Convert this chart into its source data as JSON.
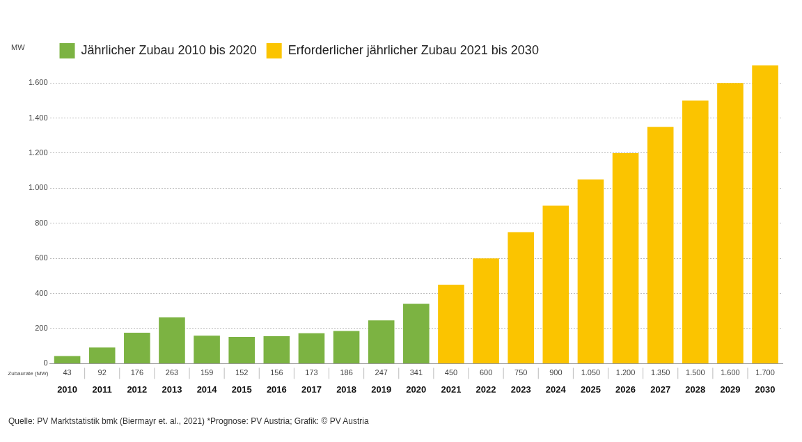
{
  "chart_data": {
    "type": "bar",
    "ylabel": "MW",
    "categories": [
      "2010",
      "2011",
      "2012",
      "2013",
      "2014",
      "2015",
      "2016",
      "2017",
      "2018",
      "2019",
      "2020",
      "2021",
      "2022",
      "2023",
      "2024",
      "2025",
      "2026",
      "2027",
      "2028",
      "2029",
      "2030"
    ],
    "series": [
      {
        "name": "Jährlicher Zubau 2010 bis 2020",
        "color": "#7cb342",
        "values": [
          43,
          92,
          176,
          263,
          159,
          152,
          156,
          173,
          186,
          247,
          341,
          null,
          null,
          null,
          null,
          null,
          null,
          null,
          null,
          null,
          null
        ],
        "value_labels": [
          "43",
          "92",
          "176",
          "263",
          "159",
          "152",
          "156",
          "173",
          "186",
          "247",
          "341",
          null,
          null,
          null,
          null,
          null,
          null,
          null,
          null,
          null,
          null
        ]
      },
      {
        "name": "Erforderlicher jährlicher Zubau 2021 bis 2030",
        "color": "#fbc400",
        "values": [
          null,
          null,
          null,
          null,
          null,
          null,
          null,
          null,
          null,
          null,
          null,
          450,
          600,
          750,
          900,
          1050,
          1200,
          1350,
          1500,
          1600,
          1700
        ],
        "value_labels": [
          null,
          null,
          null,
          null,
          null,
          null,
          null,
          null,
          null,
          null,
          null,
          "450",
          "600",
          "750",
          "900",
          "1.050",
          "1.200",
          "1.350",
          "1.500",
          "1.600",
          "1.700"
        ]
      }
    ],
    "stacked": true,
    "ylim": [
      0,
      1700
    ],
    "yticks": [
      0,
      200,
      400,
      600,
      800,
      {
        "value": 1000,
        "label": "1.000"
      },
      {
        "value": 1200,
        "label": "1.200"
      },
      {
        "value": 1400,
        "label": "1.400"
      },
      {
        "value": 1600,
        "label": "1.600"
      }
    ],
    "grid": "y",
    "legend": "top left",
    "annotations": [
      "Zubaurate (MW)",
      "Quelle:  PV Marktstatistik bmk (Biermayr et. al., 2021)  *Prognose: PV Austria; Grafik: © PV Austria"
    ]
  }
}
